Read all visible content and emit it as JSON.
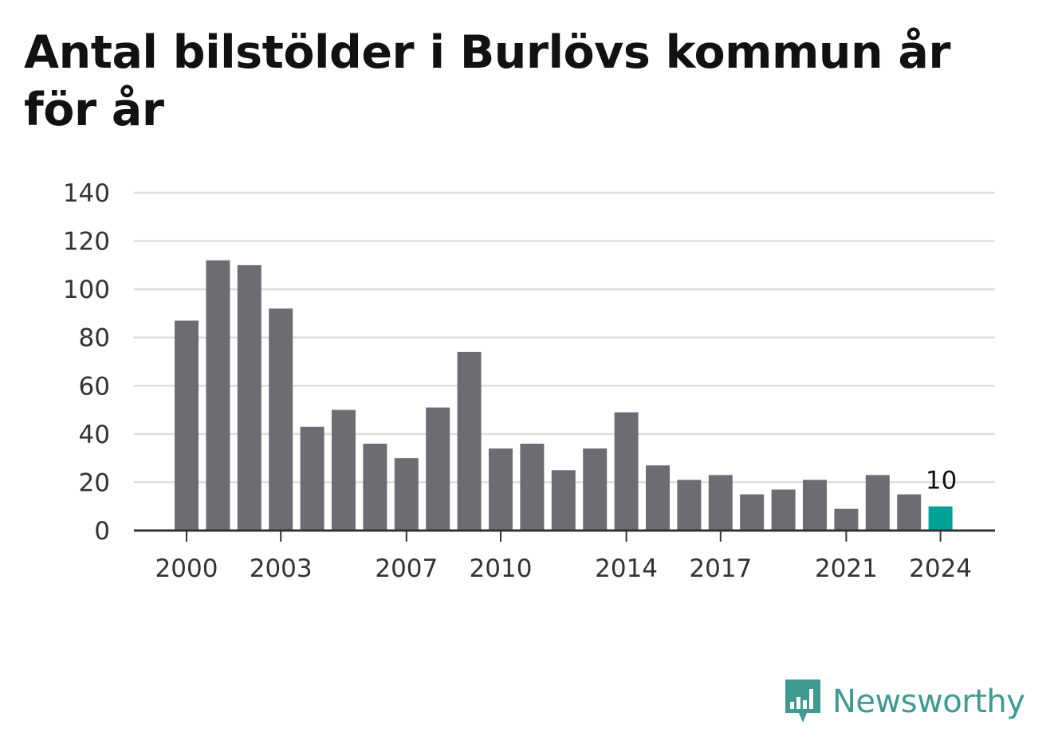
{
  "chart_data": {
    "type": "bar",
    "title": "Antal bilstölder i Burlövs kommun år för år",
    "xlabel": "",
    "ylabel": "",
    "categories": [
      "2000",
      "2001",
      "2002",
      "2003",
      "2004",
      "2005",
      "2006",
      "2007",
      "2008",
      "2009",
      "2010",
      "2011",
      "2012",
      "2013",
      "2014",
      "2015",
      "2016",
      "2017",
      "2018",
      "2019",
      "2020",
      "2021",
      "2022",
      "2023",
      "2024"
    ],
    "values": [
      87,
      112,
      110,
      92,
      43,
      50,
      36,
      30,
      51,
      74,
      34,
      36,
      25,
      34,
      49,
      27,
      21,
      23,
      15,
      17,
      21,
      9,
      23,
      15,
      10
    ],
    "x_tick_labels": [
      "2000",
      "2003",
      "2007",
      "2010",
      "2014",
      "2017",
      "2021",
      "2024"
    ],
    "y_ticks": [
      0,
      20,
      40,
      60,
      80,
      100,
      120,
      140
    ],
    "ylim": [
      0,
      140
    ],
    "grid": true,
    "highlight_category": "2024",
    "highlight_value_label": "10",
    "colors": {
      "bar": "#6d6c72",
      "highlight": "#00a398",
      "grid": "#dddddd",
      "axis": "#333333"
    }
  },
  "brand": {
    "name": "Newsworthy",
    "color": "#3f9a92",
    "icon": "newsworthy-logo-icon"
  }
}
